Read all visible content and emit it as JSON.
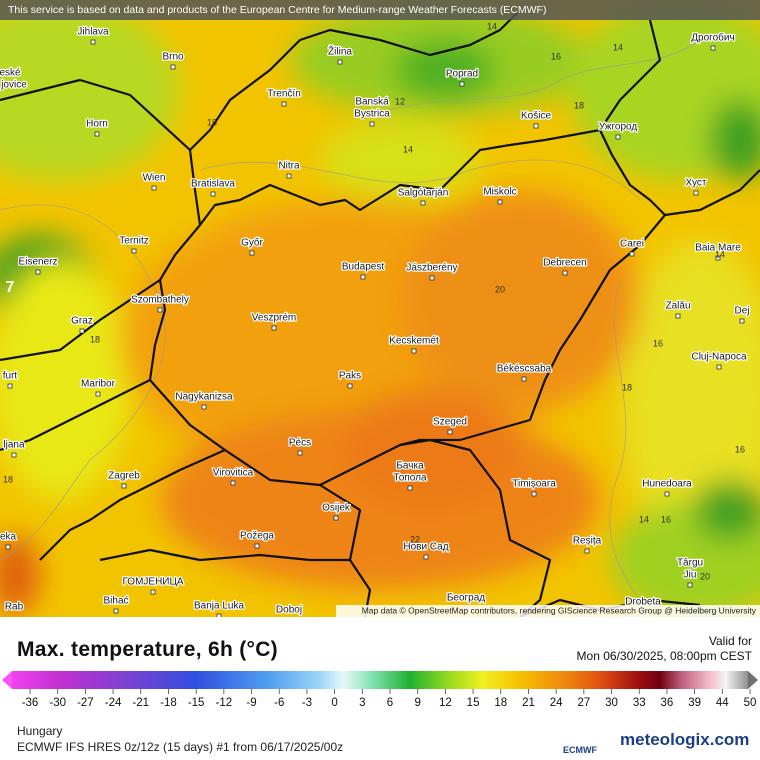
{
  "header": {
    "notice": "This service is based on data and products of the European Centre for Medium-range Weather Forecasts (ECMWF)"
  },
  "map": {
    "places": [
      "Jihlava",
      "Brno",
      "Žilina",
      "Poprad",
      "Дрогобич",
      "Trenčín",
      "Banská",
      "Bystrica",
      "Košice",
      "Ужгород",
      "Horn",
      "Nitra",
      "Wien",
      "Bratislava",
      "Salgótarján",
      "Miskolc",
      "Хуст",
      "Ternitz",
      "Győr",
      "Carei",
      "Baia Mare",
      "Eisenerz",
      "Budapest",
      "Jászberény",
      "Debrecen",
      "Szombathely",
      "Zalău",
      "Graz",
      "Veszprém",
      "Dej",
      "Kecskemét",
      "Cluj-Napoca",
      "Maribor",
      "Paks",
      "Békéscsaba",
      "Nagykanizsa",
      "Szeged",
      "Pécs",
      "Virovitica",
      "Бачка",
      "Топола",
      "Zagreb",
      "Timișoara",
      "Hunedoara",
      "Osijek",
      "Požega",
      "Reșița",
      "Нови Сад",
      "Târgu",
      "Jiu",
      "ГОМЈЕНИЦА",
      "Bihać",
      "Banja Luka",
      "Doboj",
      "Београд",
      "Drobeta",
      "eské",
      "jovice",
      "ljana",
      "furt",
      "eka",
      "Rab"
    ],
    "contour_labels": [
      14,
      14,
      16,
      12,
      18,
      18,
      14,
      20,
      18,
      16,
      18,
      18,
      14,
      16,
      14,
      20,
      22,
      7,
      16
    ],
    "attribution": "Map data © OpenStreetMap contributors, rendering GIScience Research Group @ Heidelberg University"
  },
  "legend": {
    "title": "Max. temperature, 6h (°C)",
    "valid_label": "Valid for",
    "valid_time": "Mon 06/30/2025, 08:00pm CEST",
    "scale": [
      -36,
      -30,
      -27,
      -24,
      -21,
      -18,
      -15,
      -12,
      -9,
      -6,
      -3,
      0,
      3,
      6,
      9,
      12,
      15,
      18,
      21,
      24,
      27,
      30,
      33,
      36,
      39,
      44,
      50
    ]
  },
  "footer": {
    "region": "Hungary",
    "model_run": "ECMWF IFS HRES 0z/12z (15 days) #1 from  06/17/2025/00z",
    "logos": [
      "ECMWF",
      "meteologix.com"
    ]
  }
}
